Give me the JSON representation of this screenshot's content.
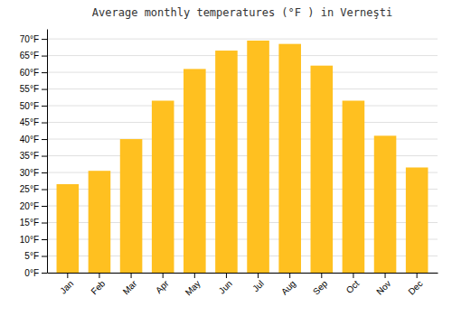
{
  "chart_data": {
    "type": "bar",
    "title": "Average monthly temperatures (°F ) in Verneşti",
    "categories": [
      "Jan",
      "Feb",
      "Mar",
      "Apr",
      "May",
      "Jun",
      "Jul",
      "Aug",
      "Sep",
      "Oct",
      "Nov",
      "Dec"
    ],
    "values": [
      26.5,
      30.5,
      40.0,
      51.5,
      61.0,
      66.5,
      69.5,
      68.5,
      62.0,
      51.5,
      41.0,
      31.5
    ],
    "color": "#FFC020",
    "ylim": [
      0,
      73
    ],
    "yticks": [
      {
        "value": 0,
        "label": "0°F"
      },
      {
        "value": 5,
        "label": "5°F"
      },
      {
        "value": 10,
        "label": "10°F"
      },
      {
        "value": 15,
        "label": "15°F"
      },
      {
        "value": 20,
        "label": "20°F"
      },
      {
        "value": 25,
        "label": "25°F"
      },
      {
        "value": 30,
        "label": "30°F"
      },
      {
        "value": 35,
        "label": "35°F"
      },
      {
        "value": 40,
        "label": "40°F"
      },
      {
        "value": 45,
        "label": "45°F"
      },
      {
        "value": 50,
        "label": "50°F"
      },
      {
        "value": 55,
        "label": "55°F"
      },
      {
        "value": 60,
        "label": "60°F"
      },
      {
        "value": 65,
        "label": "65°F"
      },
      {
        "value": 70,
        "label": "70°F"
      }
    ],
    "grid": true
  }
}
